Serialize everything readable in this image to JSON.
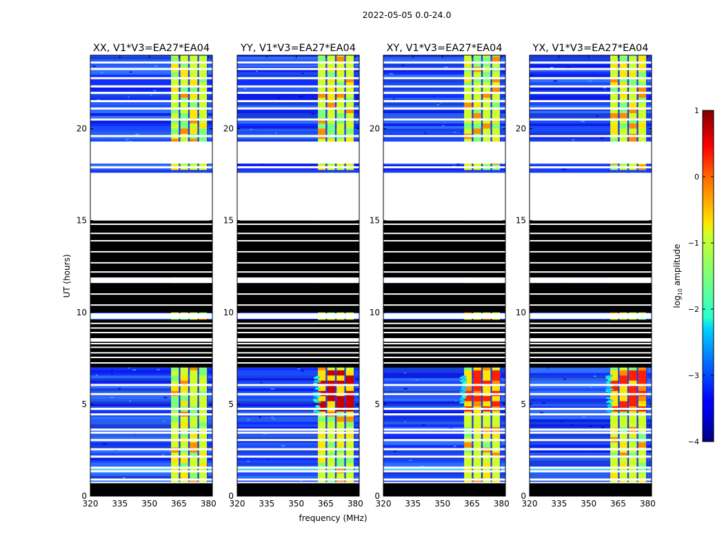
{
  "figure": {
    "suptitle": "2022-05-05 0.0-24.0"
  },
  "chart_data": {
    "type": "heatmap",
    "title": "2022-05-05 0.0-24.0",
    "xlabel": "frequency (MHz)",
    "ylabel": "UT (hours)",
    "xlim": [
      320,
      382
    ],
    "ylim": [
      0,
      24
    ],
    "x_ticks": [
      "320",
      "335",
      "350",
      "365",
      "380"
    ],
    "y_ticks": [
      "0",
      "5",
      "10",
      "15",
      "20"
    ],
    "panels": [
      {
        "title": "XX, V1*V3=EA27*EA04",
        "polarization": "XX"
      },
      {
        "title": "YY, V1*V3=EA27*EA04",
        "polarization": "YY"
      },
      {
        "title": "XY, V1*V3=EA27*EA04",
        "polarization": "XY"
      },
      {
        "title": "YX, V1*V3=EA27*EA04",
        "polarization": "YX"
      }
    ],
    "colorbar": {
      "label": "log10 amplitude",
      "label_main": "log",
      "label_sub": "10",
      "label_rest": " amplitude",
      "range": [
        -4,
        1
      ],
      "ticks": [
        "−4",
        "−3",
        "−2",
        "−1",
        "0",
        "1"
      ],
      "colormap": "jet"
    },
    "high_band_mhz": [
      361,
      380
    ],
    "flagged_blank_ut": [
      [
        15.0,
        17.6
      ],
      [
        18.1,
        19.3
      ]
    ],
    "flagged_black_ut": [
      [
        0.0,
        0.7
      ],
      [
        7.0,
        9.6
      ],
      [
        10.0,
        11.6
      ],
      [
        11.9,
        15.0
      ]
    ]
  }
}
